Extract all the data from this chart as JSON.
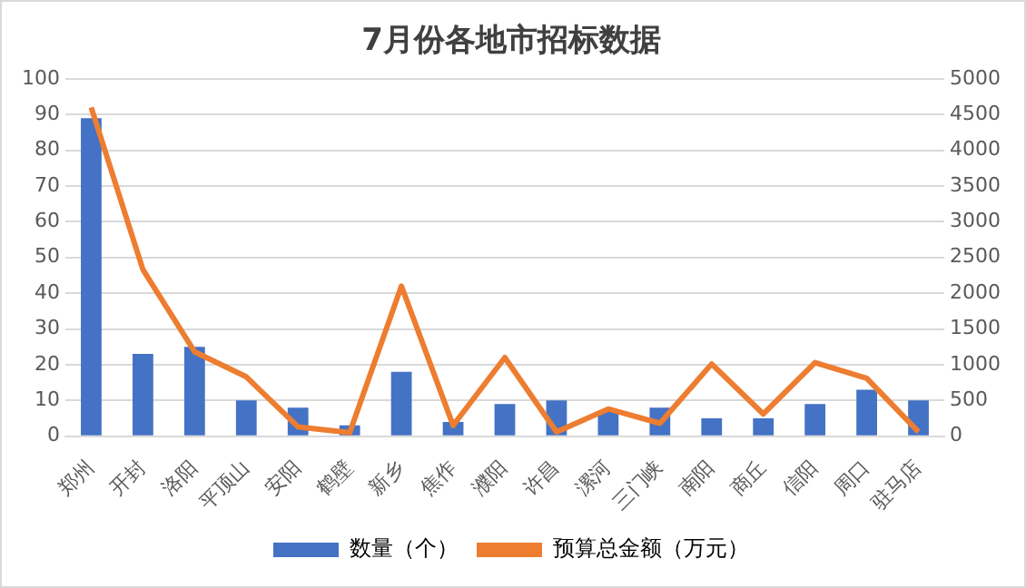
{
  "chart_data": {
    "type": "bar",
    "title": "7月份各地市招标数据",
    "categories": [
      "郑州",
      "开封",
      "洛阳",
      "平顶山",
      "安阳",
      "鹤壁",
      "新乡",
      "焦作",
      "濮阳",
      "许昌",
      "漯河",
      "三门峡",
      "南阳",
      "商丘",
      "信阳",
      "周口",
      "驻马店"
    ],
    "series": [
      {
        "name": "数量（个）",
        "color": "#4472c4",
        "values": [
          89,
          23,
          25,
          10,
          8,
          3,
          18,
          4,
          9,
          10,
          7,
          8,
          5,
          5,
          9,
          13,
          10
        ]
      },
      {
        "name": "预算总金额（万元）",
        "type": "line",
        "axis": "y2",
        "color": "#ed7d31",
        "values": [
          4600,
          2330,
          1180,
          830,
          130,
          50,
          2100,
          150,
          1100,
          60,
          380,
          180,
          1010,
          310,
          1030,
          810,
          60
        ]
      }
    ],
    "ylim": [
      0,
      100
    ],
    "yticks": [
      0,
      10,
      20,
      30,
      40,
      50,
      60,
      70,
      80,
      90,
      100
    ],
    "y2lim": [
      0,
      5000
    ],
    "y2ticks": [
      0,
      500,
      1000,
      1500,
      2000,
      2500,
      3000,
      3500,
      4000,
      4500,
      5000
    ],
    "grid": "y",
    "legend": "bottom",
    "marker": "none",
    "line_style": "solid"
  }
}
